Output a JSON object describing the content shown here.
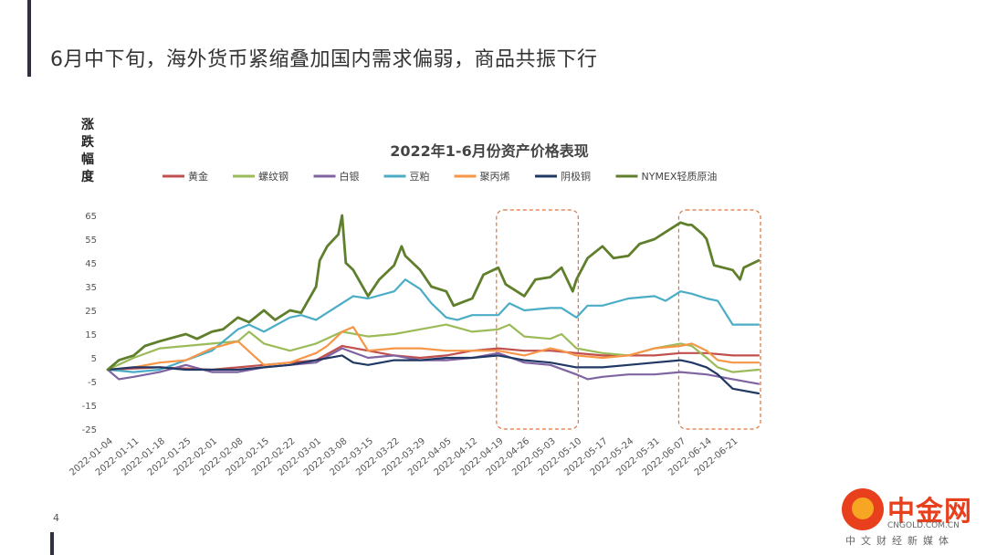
{
  "slide": {
    "title": "6月中下旬，海外货币紧缩叠加国内需求偏弱，商品共振下行",
    "page_number": "4"
  },
  "logo": {
    "name": "中金网",
    "domain": "CNGOLD.COM.CN",
    "tagline": "中文财经新媒体"
  },
  "chart_data": {
    "type": "line",
    "title": "2022年1-6月份资产价格表现",
    "ylabel": "涨跌幅度",
    "xlabel": "",
    "ylim": [
      -25,
      65
    ],
    "yticks": [
      65,
      55,
      45,
      35,
      25,
      15,
      5,
      -5,
      -15,
      -25
    ],
    "grid": false,
    "legend_position": "top",
    "xticks": [
      "2022-01-04",
      "2022-01-11",
      "2022-01-18",
      "2022-01-25",
      "2022-02-01",
      "2022-02-08",
      "2022-02-15",
      "2022-02-22",
      "2022-03-01",
      "2022-03-08",
      "2022-03-15",
      "2022-03-22",
      "2022-03-29",
      "2022-04-05",
      "2022-04-12",
      "2022-04-19",
      "2022-04-26",
      "2022-05-03",
      "2022-05-10",
      "2022-05-17",
      "2022-05-24",
      "2022-05-31",
      "2022-06-07",
      "2022-06-14",
      "2022-06-21"
    ],
    "highlights": [
      {
        "from": "2022-04-19",
        "to": "2022-05-10",
        "ymin": -25,
        "ymax": 65
      },
      {
        "from": "2022-06-07",
        "to": "2022-06-28",
        "ymin": -25,
        "ymax": 65
      }
    ],
    "x_end": "2022-06-28",
    "series": [
      {
        "name": "黄金",
        "color": "#c0504d",
        "points": [
          [
            "2022-01-04",
            0
          ],
          [
            "2022-01-18",
            1
          ],
          [
            "2022-02-01",
            0
          ],
          [
            "2022-02-15",
            2
          ],
          [
            "2022-03-01",
            4
          ],
          [
            "2022-03-08",
            10
          ],
          [
            "2022-03-15",
            8
          ],
          [
            "2022-03-22",
            6
          ],
          [
            "2022-03-29",
            5
          ],
          [
            "2022-04-05",
            6
          ],
          [
            "2022-04-12",
            8
          ],
          [
            "2022-04-19",
            9
          ],
          [
            "2022-04-26",
            8
          ],
          [
            "2022-05-03",
            8
          ],
          [
            "2022-05-10",
            7
          ],
          [
            "2022-05-17",
            6
          ],
          [
            "2022-05-24",
            6
          ],
          [
            "2022-05-31",
            6
          ],
          [
            "2022-06-07",
            7
          ],
          [
            "2022-06-14",
            7
          ],
          [
            "2022-06-21",
            6
          ],
          [
            "2022-06-28",
            6
          ]
        ]
      },
      {
        "name": "螺纹钢",
        "color": "#9bbb59",
        "points": [
          [
            "2022-01-04",
            0
          ],
          [
            "2022-01-11",
            5
          ],
          [
            "2022-01-18",
            9
          ],
          [
            "2022-01-25",
            10
          ],
          [
            "2022-02-01",
            11
          ],
          [
            "2022-02-08",
            12
          ],
          [
            "2022-02-11",
            16
          ],
          [
            "2022-02-15",
            11
          ],
          [
            "2022-02-22",
            8
          ],
          [
            "2022-03-01",
            11
          ],
          [
            "2022-03-08",
            16
          ],
          [
            "2022-03-15",
            14
          ],
          [
            "2022-03-22",
            15
          ],
          [
            "2022-03-29",
            17
          ],
          [
            "2022-04-05",
            19
          ],
          [
            "2022-04-12",
            16
          ],
          [
            "2022-04-19",
            17
          ],
          [
            "2022-04-22",
            19
          ],
          [
            "2022-04-26",
            14
          ],
          [
            "2022-05-03",
            13
          ],
          [
            "2022-05-06",
            15
          ],
          [
            "2022-05-10",
            9
          ],
          [
            "2022-05-17",
            7
          ],
          [
            "2022-05-24",
            6
          ],
          [
            "2022-05-31",
            9
          ],
          [
            "2022-06-07",
            11
          ],
          [
            "2022-06-10",
            10
          ],
          [
            "2022-06-14",
            5
          ],
          [
            "2022-06-17",
            1
          ],
          [
            "2022-06-21",
            -1
          ],
          [
            "2022-06-28",
            0
          ]
        ]
      },
      {
        "name": "白银",
        "color": "#8064a2",
        "points": [
          [
            "2022-01-04",
            0
          ],
          [
            "2022-01-07",
            -4
          ],
          [
            "2022-01-11",
            -3
          ],
          [
            "2022-01-18",
            -1
          ],
          [
            "2022-01-25",
            2
          ],
          [
            "2022-02-01",
            -1
          ],
          [
            "2022-02-08",
            -1
          ],
          [
            "2022-02-15",
            1
          ],
          [
            "2022-02-22",
            2
          ],
          [
            "2022-03-01",
            3
          ],
          [
            "2022-03-08",
            9
          ],
          [
            "2022-03-15",
            5
          ],
          [
            "2022-03-22",
            6
          ],
          [
            "2022-03-29",
            4
          ],
          [
            "2022-04-05",
            4
          ],
          [
            "2022-04-12",
            5
          ],
          [
            "2022-04-19",
            7
          ],
          [
            "2022-04-26",
            3
          ],
          [
            "2022-05-03",
            2
          ],
          [
            "2022-05-10",
            -2
          ],
          [
            "2022-05-13",
            -4
          ],
          [
            "2022-05-17",
            -3
          ],
          [
            "2022-05-24",
            -2
          ],
          [
            "2022-05-31",
            -2
          ],
          [
            "2022-06-07",
            -1
          ],
          [
            "2022-06-14",
            -2
          ],
          [
            "2022-06-21",
            -4
          ],
          [
            "2022-06-28",
            -6
          ]
        ]
      },
      {
        "name": "豆粕",
        "color": "#4bacc6",
        "points": [
          [
            "2022-01-04",
            0
          ],
          [
            "2022-01-11",
            -1
          ],
          [
            "2022-01-18",
            0
          ],
          [
            "2022-01-25",
            4
          ],
          [
            "2022-02-01",
            8
          ],
          [
            "2022-02-08",
            17
          ],
          [
            "2022-02-11",
            19
          ],
          [
            "2022-02-15",
            16
          ],
          [
            "2022-02-22",
            22
          ],
          [
            "2022-02-25",
            23
          ],
          [
            "2022-03-01",
            21
          ],
          [
            "2022-03-04",
            24
          ],
          [
            "2022-03-08",
            28
          ],
          [
            "2022-03-11",
            31
          ],
          [
            "2022-03-15",
            30
          ],
          [
            "2022-03-22",
            33
          ],
          [
            "2022-03-25",
            38
          ],
          [
            "2022-03-29",
            34
          ],
          [
            "2022-04-01",
            28
          ],
          [
            "2022-04-05",
            22
          ],
          [
            "2022-04-08",
            21
          ],
          [
            "2022-04-12",
            23
          ],
          [
            "2022-04-19",
            23
          ],
          [
            "2022-04-22",
            28
          ],
          [
            "2022-04-26",
            25
          ],
          [
            "2022-05-03",
            26
          ],
          [
            "2022-05-06",
            26
          ],
          [
            "2022-05-10",
            22
          ],
          [
            "2022-05-13",
            27
          ],
          [
            "2022-05-17",
            27
          ],
          [
            "2022-05-24",
            30
          ],
          [
            "2022-05-31",
            31
          ],
          [
            "2022-06-03",
            29
          ],
          [
            "2022-06-07",
            33
          ],
          [
            "2022-06-10",
            32
          ],
          [
            "2022-06-14",
            30
          ],
          [
            "2022-06-17",
            29
          ],
          [
            "2022-06-21",
            19
          ],
          [
            "2022-06-28",
            19
          ]
        ]
      },
      {
        "name": "聚丙烯",
        "color": "#f79646",
        "points": [
          [
            "2022-01-04",
            0
          ],
          [
            "2022-01-11",
            1
          ],
          [
            "2022-01-18",
            3
          ],
          [
            "2022-01-25",
            4
          ],
          [
            "2022-02-01",
            9
          ],
          [
            "2022-02-08",
            12
          ],
          [
            "2022-02-15",
            2
          ],
          [
            "2022-02-22",
            3
          ],
          [
            "2022-03-01",
            7
          ],
          [
            "2022-03-04",
            10
          ],
          [
            "2022-03-08",
            16
          ],
          [
            "2022-03-11",
            18
          ],
          [
            "2022-03-15",
            8
          ],
          [
            "2022-03-22",
            9
          ],
          [
            "2022-03-29",
            9
          ],
          [
            "2022-04-05",
            8
          ],
          [
            "2022-04-12",
            8
          ],
          [
            "2022-04-19",
            8
          ],
          [
            "2022-04-26",
            6
          ],
          [
            "2022-05-03",
            9
          ],
          [
            "2022-05-06",
            8
          ],
          [
            "2022-05-10",
            6
          ],
          [
            "2022-05-17",
            5
          ],
          [
            "2022-05-24",
            6
          ],
          [
            "2022-05-31",
            9
          ],
          [
            "2022-06-07",
            10
          ],
          [
            "2022-06-10",
            11
          ],
          [
            "2022-06-14",
            8
          ],
          [
            "2022-06-17",
            4
          ],
          [
            "2022-06-21",
            3
          ],
          [
            "2022-06-28",
            3
          ]
        ]
      },
      {
        "name": "阴极铜",
        "color": "#1f3864",
        "points": [
          [
            "2022-01-04",
            0
          ],
          [
            "2022-01-11",
            1
          ],
          [
            "2022-01-18",
            1
          ],
          [
            "2022-01-25",
            0
          ],
          [
            "2022-02-01",
            0
          ],
          [
            "2022-02-08",
            0
          ],
          [
            "2022-02-15",
            1
          ],
          [
            "2022-02-22",
            2
          ],
          [
            "2022-03-01",
            4
          ],
          [
            "2022-03-08",
            6
          ],
          [
            "2022-03-11",
            3
          ],
          [
            "2022-03-15",
            2
          ],
          [
            "2022-03-22",
            4
          ],
          [
            "2022-03-29",
            4
          ],
          [
            "2022-04-05",
            5
          ],
          [
            "2022-04-12",
            5
          ],
          [
            "2022-04-19",
            6
          ],
          [
            "2022-04-26",
            4
          ],
          [
            "2022-05-03",
            3
          ],
          [
            "2022-05-10",
            1
          ],
          [
            "2022-05-17",
            1
          ],
          [
            "2022-05-24",
            2
          ],
          [
            "2022-05-31",
            3
          ],
          [
            "2022-06-07",
            4
          ],
          [
            "2022-06-10",
            3
          ],
          [
            "2022-06-14",
            1
          ],
          [
            "2022-06-17",
            -2
          ],
          [
            "2022-06-21",
            -8
          ],
          [
            "2022-06-28",
            -10
          ]
        ]
      },
      {
        "name": "NYMEX轻质原油",
        "color": "#5f7f2c",
        "points": [
          [
            "2022-01-04",
            0
          ],
          [
            "2022-01-07",
            4
          ],
          [
            "2022-01-11",
            6
          ],
          [
            "2022-01-14",
            10
          ],
          [
            "2022-01-18",
            12
          ],
          [
            "2022-01-25",
            15
          ],
          [
            "2022-01-28",
            13
          ],
          [
            "2022-02-01",
            16
          ],
          [
            "2022-02-04",
            17
          ],
          [
            "2022-02-08",
            22
          ],
          [
            "2022-02-11",
            20
          ],
          [
            "2022-02-15",
            25
          ],
          [
            "2022-02-18",
            21
          ],
          [
            "2022-02-22",
            25
          ],
          [
            "2022-02-25",
            24
          ],
          [
            "2022-03-01",
            35
          ],
          [
            "2022-03-02",
            46
          ],
          [
            "2022-03-04",
            52
          ],
          [
            "2022-03-07",
            57
          ],
          [
            "2022-03-08",
            65
          ],
          [
            "2022-03-09",
            45
          ],
          [
            "2022-03-11",
            42
          ],
          [
            "2022-03-15",
            31
          ],
          [
            "2022-03-18",
            38
          ],
          [
            "2022-03-22",
            44
          ],
          [
            "2022-03-24",
            52
          ],
          [
            "2022-03-25",
            48
          ],
          [
            "2022-03-29",
            42
          ],
          [
            "2022-04-01",
            35
          ],
          [
            "2022-04-05",
            33
          ],
          [
            "2022-04-07",
            27
          ],
          [
            "2022-04-12",
            30
          ],
          [
            "2022-04-15",
            40
          ],
          [
            "2022-04-19",
            43
          ],
          [
            "2022-04-21",
            36
          ],
          [
            "2022-04-26",
            31
          ],
          [
            "2022-04-29",
            38
          ],
          [
            "2022-05-03",
            39
          ],
          [
            "2022-05-06",
            43
          ],
          [
            "2022-05-09",
            33
          ],
          [
            "2022-05-10",
            38
          ],
          [
            "2022-05-13",
            47
          ],
          [
            "2022-05-17",
            52
          ],
          [
            "2022-05-20",
            47
          ],
          [
            "2022-05-24",
            48
          ],
          [
            "2022-05-27",
            53
          ],
          [
            "2022-05-31",
            55
          ],
          [
            "2022-06-03",
            58
          ],
          [
            "2022-06-07",
            62
          ],
          [
            "2022-06-09",
            61
          ],
          [
            "2022-06-10",
            61
          ],
          [
            "2022-06-13",
            57
          ],
          [
            "2022-06-14",
            55
          ],
          [
            "2022-06-16",
            44
          ],
          [
            "2022-06-21",
            42
          ],
          [
            "2022-06-23",
            38
          ],
          [
            "2022-06-24",
            43
          ],
          [
            "2022-06-28",
            46
          ]
        ]
      }
    ]
  }
}
